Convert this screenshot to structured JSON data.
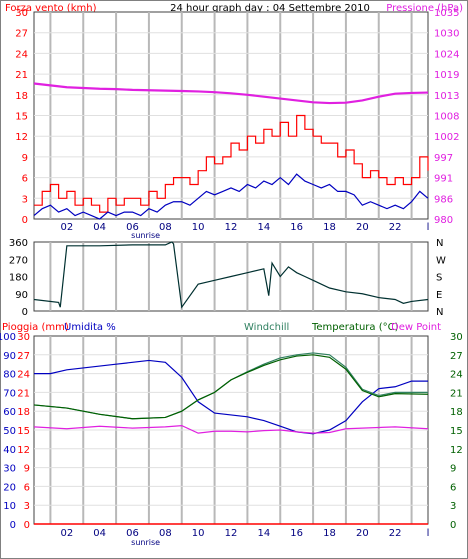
{
  "header": {
    "left_title": "Forza vento (kmh)",
    "center_title": "24 hour graph day : 04 Settembre 2010",
    "right_title": "Pressione (hPa)"
  },
  "x_axis": {
    "hour_labels": [
      "02",
      "04",
      "06",
      "08",
      "10",
      "12",
      "14",
      "16",
      "18",
      "20",
      "22"
    ],
    "end_tick_label": "l",
    "sunrise_label": "sunrise"
  },
  "panel_wind": {
    "left_ticks": [
      "0",
      "3",
      "6",
      "9",
      "12",
      "15",
      "18",
      "21",
      "24",
      "27",
      "30"
    ],
    "right_ticks": [
      "980",
      "986",
      "991",
      "997",
      "1002",
      "1008",
      "1013",
      "1019",
      "1024",
      "1030",
      "1035"
    ]
  },
  "panel_direction": {
    "left_ticks": [
      "0",
      "90",
      "180",
      "270",
      "360"
    ],
    "right_labels": [
      "N",
      "W",
      "S",
      "E",
      "N"
    ]
  },
  "panel_temp": {
    "legend": {
      "rain": "Pioggia (mm)",
      "humidity": "Umidita %",
      "windchill": "Windchill",
      "temperature": "Temperatura (°C)",
      "dew_point": "Dew Point"
    },
    "left_ticks_humidity": [
      "0",
      "10",
      "20",
      "30",
      "40",
      "50",
      "60",
      "70",
      "80",
      "90",
      "100"
    ],
    "left_ticks_rain": [
      "0",
      "3",
      "6",
      "9",
      "12",
      "15",
      "18",
      "21",
      "24",
      "27",
      "30"
    ],
    "right_ticks": [
      "0",
      "3",
      "6",
      "9",
      "12",
      "15",
      "18",
      "21",
      "24",
      "27",
      "30"
    ]
  },
  "colors": {
    "wind_gust": "#ff0000",
    "wind_avg": "#0000c0",
    "pressure": "#e020e0",
    "direction": "#003030",
    "humidity": "#0000c0",
    "windchill": "#308060",
    "temperature": "#006000",
    "dew_point": "#e020e0",
    "rain": "#ff0000",
    "grid": "#b8b8b8"
  },
  "chart_data": [
    {
      "type": "line",
      "x_unit": "hour",
      "xlim": [
        0,
        24
      ],
      "ylim_left": [
        0,
        30
      ],
      "ylim_right": [
        980,
        1035
      ],
      "series": [
        {
          "name": "Forza vento (kmh)",
          "x": [
            0,
            0.5,
            1,
            1.5,
            2,
            2.5,
            3,
            3.5,
            4,
            4.5,
            5,
            5.5,
            6,
            6.5,
            7,
            7.5,
            8,
            8.5,
            9,
            9.5,
            10,
            10.5,
            11,
            11.5,
            12,
            12.5,
            13,
            13.5,
            14,
            14.5,
            15,
            15.5,
            16,
            16.5,
            17,
            17.5,
            18,
            18.5,
            19,
            19.5,
            20,
            20.5,
            21,
            21.5,
            22,
            22.5,
            23,
            23.5,
            24
          ],
          "values": [
            2,
            4,
            5,
            3,
            4,
            2,
            3,
            2,
            1,
            3,
            2,
            3,
            3,
            2,
            4,
            3,
            5,
            6,
            6,
            5,
            7,
            9,
            8,
            9,
            11,
            10,
            12,
            11,
            13,
            12,
            14,
            12,
            15,
            13,
            12,
            11,
            11,
            9,
            10,
            8,
            6,
            7,
            6,
            5,
            6,
            5,
            6,
            9,
            7
          ]
        },
        {
          "name": "",
          "x": [
            0,
            0.5,
            1,
            1.5,
            2,
            2.5,
            3,
            3.5,
            4,
            4.5,
            5,
            5.5,
            6,
            6.5,
            7,
            7.5,
            8,
            8.5,
            9,
            9.5,
            10,
            10.5,
            11,
            11.5,
            12,
            12.5,
            13,
            13.5,
            14,
            14.5,
            15,
            15.5,
            16,
            16.5,
            17,
            17.5,
            18,
            18.5,
            19,
            19.5,
            20,
            20.5,
            21,
            21.5,
            22,
            22.5,
            23,
            23.5,
            24
          ],
          "values": [
            0.5,
            1.5,
            2,
            1,
            1.5,
            0.5,
            1,
            0.5,
            0,
            1,
            0.5,
            1,
            1,
            0.5,
            1.5,
            1,
            2,
            2.5,
            2.5,
            2,
            3,
            4,
            3.5,
            4,
            4.5,
            4,
            5,
            4.5,
            5.5,
            5,
            6,
            5,
            6.5,
            5.5,
            5,
            4.5,
            5,
            4,
            4,
            3.5,
            2,
            2.5,
            2,
            1.5,
            2,
            1.5,
            2.5,
            4,
            3
          ]
        },
        {
          "name": "Pressione (hPa)",
          "x": [
            0,
            1,
            2,
            3,
            4,
            5,
            6,
            7,
            8,
            9,
            10,
            11,
            12,
            13,
            14,
            15,
            16,
            17,
            18,
            19,
            20,
            21,
            22,
            23,
            24
          ],
          "values": [
            1016,
            1015.5,
            1015,
            1014.8,
            1014.6,
            1014.5,
            1014.3,
            1014.2,
            1014.1,
            1014,
            1013.9,
            1013.7,
            1013.4,
            1013,
            1012.5,
            1012,
            1011.5,
            1011,
            1010.8,
            1010.9,
            1011.5,
            1012.5,
            1013.3,
            1013.5,
            1013.6
          ]
        }
      ]
    },
    {
      "type": "line",
      "x_unit": "hour",
      "xlim": [
        0,
        24
      ],
      "ylim": [
        0,
        360
      ],
      "series": [
        {
          "name": "",
          "x": [
            0,
            1.5,
            1.6,
            2,
            4,
            6,
            8,
            8.4,
            8.5,
            9,
            10,
            11,
            12,
            13,
            14,
            14.3,
            14.5,
            15,
            15.5,
            16,
            16.5,
            17,
            18,
            19,
            20,
            21,
            22,
            22.5,
            23,
            24
          ],
          "values": [
            60,
            45,
            20,
            340,
            340,
            345,
            345,
            360,
            350,
            20,
            140,
            160,
            180,
            200,
            220,
            80,
            250,
            180,
            230,
            200,
            180,
            160,
            120,
            100,
            90,
            70,
            60,
            40,
            50,
            60
          ]
        }
      ]
    },
    {
      "type": "line",
      "x_unit": "hour",
      "xlim": [
        0,
        24
      ],
      "ylim_left": [
        0,
        100
      ],
      "ylim_right": [
        0,
        30
      ],
      "series": [
        {
          "name": "Umidita %",
          "x": [
            0,
            1,
            2,
            3,
            4,
            5,
            6,
            7,
            8,
            8.5,
            9,
            10,
            11,
            12,
            13,
            14,
            15,
            16,
            17,
            18,
            19,
            20,
            21,
            22,
            23,
            24
          ],
          "values": [
            80,
            80,
            82,
            83,
            84,
            85,
            86,
            87,
            86,
            82,
            78,
            65,
            59,
            58,
            57,
            55,
            52,
            49,
            48,
            50,
            55,
            65,
            72,
            73,
            76,
            76
          ]
        },
        {
          "name": "Windchill",
          "x": [
            0,
            2,
            4,
            6,
            8,
            9,
            10,
            11,
            12,
            13,
            14,
            15,
            16,
            17,
            18,
            19,
            20,
            21,
            22,
            24
          ],
          "values": [
            19,
            18.5,
            17.5,
            16.8,
            17,
            18,
            19.8,
            21,
            23,
            24.3,
            25.5,
            26.5,
            27,
            27.3,
            27,
            25,
            21.5,
            20.5,
            21,
            21
          ]
        },
        {
          "name": "Temperatura (°C)",
          "x": [
            0,
            2,
            4,
            6,
            8,
            9,
            10,
            11,
            12,
            13,
            14,
            15,
            16,
            17,
            18,
            19,
            20,
            21,
            22,
            24
          ],
          "values": [
            19,
            18.5,
            17.5,
            16.8,
            17,
            18,
            19.8,
            21,
            23,
            24.2,
            25.3,
            26.2,
            26.8,
            27,
            26.6,
            24.7,
            21.3,
            20.3,
            20.8,
            20.7
          ]
        },
        {
          "name": "Dew Point",
          "x": [
            0,
            2,
            4,
            6,
            8,
            9,
            10,
            11,
            12,
            13,
            14,
            15,
            16,
            17,
            18,
            19,
            20,
            22,
            24
          ],
          "values": [
            15.5,
            15.2,
            15.6,
            15.3,
            15.5,
            15.7,
            14.5,
            14.8,
            14.8,
            14.7,
            14.9,
            15,
            14.7,
            14.5,
            14.6,
            15.2,
            15.3,
            15.5,
            15.2
          ]
        },
        {
          "name": "Pioggia (mm)",
          "x": [
            0,
            24
          ],
          "values": [
            0,
            0
          ]
        }
      ]
    }
  ]
}
